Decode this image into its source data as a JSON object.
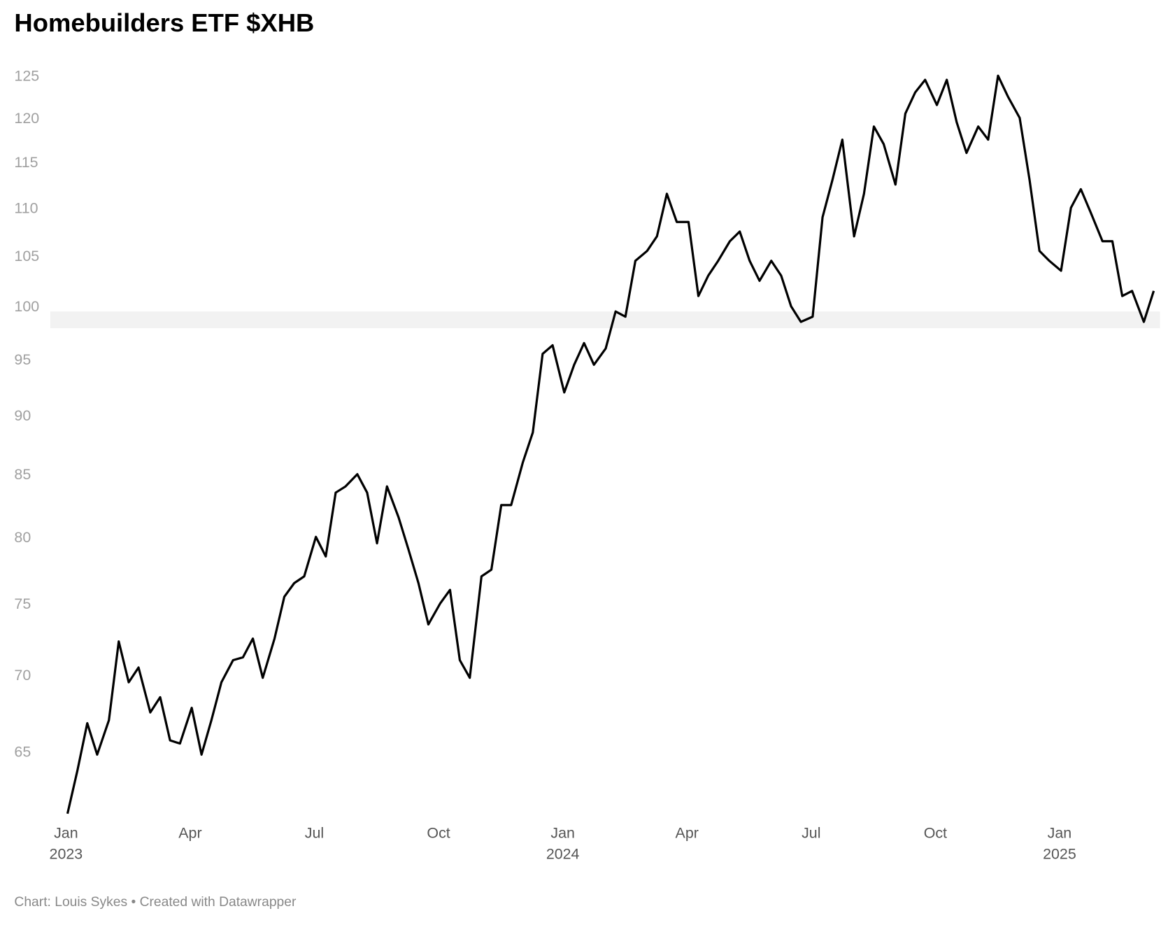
{
  "chart_data": {
    "type": "line",
    "title": "Homebuilders ETF $XHB",
    "footer": "Chart: Louis Sykes • Created with Datawrapper",
    "color": "#000000",
    "log_scale": true,
    "ylim": [
      61,
      126
    ],
    "yticks": [
      65,
      70,
      75,
      80,
      85,
      90,
      95,
      100,
      105,
      110,
      115,
      120,
      125
    ],
    "highlight_range": [
      97.9,
      99.5
    ],
    "xticks": [
      {
        "value": "2023-01",
        "label": "Jan",
        "year": "2023"
      },
      {
        "value": "2023-04",
        "label": "Apr"
      },
      {
        "value": "2023-07",
        "label": "Jul"
      },
      {
        "value": "2023-10",
        "label": "Oct"
      },
      {
        "value": "2024-01",
        "label": "Jan",
        "year": "2024"
      },
      {
        "value": "2024-04",
        "label": "Apr"
      },
      {
        "value": "2024-07",
        "label": "Jul"
      },
      {
        "value": "2024-10",
        "label": "Oct"
      },
      {
        "value": "2025-01",
        "label": "Jan",
        "year": "2025"
      }
    ],
    "x": [
      "2023-01",
      "2023-01",
      "2023-01",
      "2023-01",
      "2023-02",
      "2023-02",
      "2023-02",
      "2023-02",
      "2023-03",
      "2023-03",
      "2023-03",
      "2023-03",
      "2023-04",
      "2023-04",
      "2023-04",
      "2023-04",
      "2023-05",
      "2023-05",
      "2023-05",
      "2023-05",
      "2023-06",
      "2023-06",
      "2023-06",
      "2023-06",
      "2023-07",
      "2023-07",
      "2023-07",
      "2023-07",
      "2023-08",
      "2023-08",
      "2023-08",
      "2023-08",
      "2023-09",
      "2023-09",
      "2023-09",
      "2023-09",
      "2023-10",
      "2023-10",
      "2023-10",
      "2023-10",
      "2023-11",
      "2023-11",
      "2023-11",
      "2023-11",
      "2023-12",
      "2023-12",
      "2023-12",
      "2023-12",
      "2024-01",
      "2024-01",
      "2024-01",
      "2024-01",
      "2024-02",
      "2024-02",
      "2024-02",
      "2024-02",
      "2024-03",
      "2024-03",
      "2024-03",
      "2024-03",
      "2024-04",
      "2024-04",
      "2024-04",
      "2024-04",
      "2024-05",
      "2024-05",
      "2024-05",
      "2024-05",
      "2024-06",
      "2024-06",
      "2024-06",
      "2024-06",
      "2024-07",
      "2024-07",
      "2024-07",
      "2024-07",
      "2024-08",
      "2024-08",
      "2024-08",
      "2024-08",
      "2024-09",
      "2024-09",
      "2024-09",
      "2024-09",
      "2024-10",
      "2024-10",
      "2024-10",
      "2024-10",
      "2024-11",
      "2024-11",
      "2024-11",
      "2024-11",
      "2024-12",
      "2024-12",
      "2024-12",
      "2024-12",
      "2025-01",
      "2025-01",
      "2025-01",
      "2025-01",
      "2025-02",
      "2025-02",
      "2025-02",
      "2025-02",
      "2025-03",
      "2025-03"
    ],
    "values": [
      61.2,
      63.8,
      66.8,
      64.8,
      67,
      72.3,
      69.5,
      70.5,
      67.5,
      68.5,
      65.7,
      65.5,
      67.8,
      64.8,
      67,
      69.5,
      71,
      71.2,
      72.5,
      69.8,
      72.5,
      75.5,
      76.5,
      77,
      80,
      78.5,
      83.5,
      84,
      85,
      83.5,
      79.5,
      84,
      81.5,
      79,
      76.5,
      73.5,
      75,
      76,
      71,
      69.8,
      77,
      77.5,
      82.5,
      82.5,
      86,
      88.5,
      95.5,
      96.3,
      92,
      94.5,
      96.5,
      94.5,
      96,
      99.5,
      99,
      104.5,
      105.5,
      107,
      111.5,
      108.5,
      108.5,
      101,
      103,
      104.5,
      106.5,
      107.5,
      104.5,
      102.5,
      104.5,
      103,
      100,
      98.5,
      99,
      109,
      113,
      117.5,
      107,
      111.5,
      119,
      117,
      112.5,
      120.5,
      123,
      124.5,
      121.5,
      124.5,
      119.5,
      116,
      119,
      117.5,
      125,
      122.5,
      120,
      113,
      105.5,
      104.5,
      103.5,
      110,
      112,
      109.5,
      106.5,
      106.5,
      101,
      101.5,
      98.5,
      101.5
    ]
  }
}
